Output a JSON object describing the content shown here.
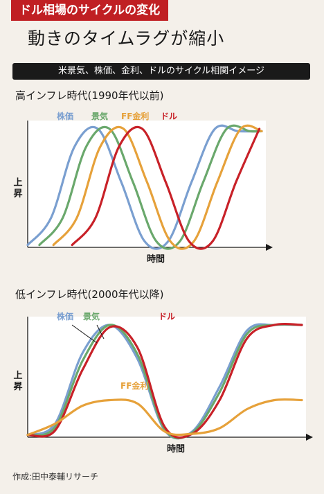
{
  "banner": "ドル相場のサイクルの変化",
  "headline": "動きのタイムラグが縮小",
  "subtitle": "米景気、株価、金利、ドルのサイクル相関イメージ",
  "source": "作成:田中泰輔リサーチ",
  "colors": {
    "stock": "#7a9fd0",
    "economy": "#6aa86c",
    "ff": "#e6a13a",
    "dollar": "#c82128"
  },
  "chart_data": [
    {
      "type": "line",
      "title": "高インフレ時代(1990年代以前)",
      "ylabel": "上昇",
      "xlabel": "時間",
      "xlim": [
        0,
        100
      ],
      "ylim": [
        0,
        1
      ],
      "series": [
        {
          "name": "株価",
          "color": "#7a9fd0",
          "x": [
            0,
            10,
            20,
            30,
            40,
            50,
            60,
            70,
            80,
            90,
            100
          ],
          "y": [
            0.02,
            0.25,
            0.85,
            1.0,
            0.55,
            0.05,
            0.05,
            0.55,
            1.0,
            0.98,
            0.98
          ]
        },
        {
          "name": "景気",
          "color": "#6aa86c",
          "x": [
            5,
            15,
            25,
            35,
            45,
            55,
            65,
            75,
            85,
            95,
            100
          ],
          "y": [
            0.02,
            0.25,
            0.85,
            1.0,
            0.55,
            0.05,
            0.05,
            0.55,
            1.0,
            0.98,
            0.98
          ]
        },
        {
          "name": "FF金利",
          "color": "#e6a13a",
          "x": [
            11,
            21,
            31,
            41,
            51,
            61,
            71,
            81,
            91,
            100
          ],
          "y": [
            0.02,
            0.25,
            0.85,
            1.0,
            0.55,
            0.05,
            0.05,
            0.55,
            1.0,
            0.98
          ]
        },
        {
          "name": "ドル",
          "color": "#c82128",
          "x": [
            19,
            29,
            39,
            49,
            59,
            69,
            79,
            89,
            99
          ],
          "y": [
            0.02,
            0.25,
            0.85,
            1.0,
            0.55,
            0.05,
            0.05,
            0.55,
            1.0
          ]
        }
      ],
      "labels": [
        {
          "text": "株価",
          "series": "株価"
        },
        {
          "text": "景気",
          "series": "景気"
        },
        {
          "text": "FF金利",
          "series": "FF金利"
        },
        {
          "text": "ドル",
          "series": "ドル"
        }
      ]
    },
    {
      "type": "line",
      "title": "低インフレ時代(2000年代以降)",
      "ylabel": "上昇",
      "xlabel": "時間",
      "xlim": [
        0,
        100
      ],
      "ylim": [
        0,
        1
      ],
      "series": [
        {
          "name": "株価",
          "color": "#7a9fd0",
          "x": [
            0,
            10,
            20,
            30,
            40,
            50,
            60,
            70,
            80,
            90,
            100
          ],
          "y": [
            0.02,
            0.12,
            0.75,
            1.0,
            0.7,
            0.06,
            0.05,
            0.45,
            0.95,
            1.0,
            1.0
          ]
        },
        {
          "name": "景気",
          "color": "#6aa86c",
          "x": [
            0,
            10,
            20,
            30,
            40,
            50,
            60,
            70,
            80,
            90,
            100
          ],
          "y": [
            0.02,
            0.09,
            0.68,
            1.0,
            0.74,
            0.07,
            0.04,
            0.4,
            0.92,
            1.0,
            1.0
          ]
        },
        {
          "name": "ドル",
          "color": "#c82128",
          "x": [
            0,
            10,
            20,
            30,
            40,
            50,
            60,
            70,
            80,
            90,
            100
          ],
          "y": [
            0.02,
            0.06,
            0.6,
            0.98,
            0.8,
            0.09,
            0.03,
            0.33,
            0.88,
            1.0,
            1.0
          ]
        },
        {
          "name": "FF金利",
          "color": "#e6a13a",
          "x": [
            0,
            10,
            20,
            30,
            40,
            50,
            60,
            70,
            80,
            90,
            100
          ],
          "y": [
            0.02,
            0.12,
            0.28,
            0.33,
            0.3,
            0.05,
            0.03,
            0.08,
            0.25,
            0.33,
            0.33
          ]
        }
      ],
      "labels": [
        {
          "text": "株価",
          "series": "株価"
        },
        {
          "text": "景気",
          "series": "景気"
        },
        {
          "text": "ドル",
          "series": "ドル"
        },
        {
          "text": "FF金利",
          "series": "FF金利"
        }
      ]
    }
  ]
}
